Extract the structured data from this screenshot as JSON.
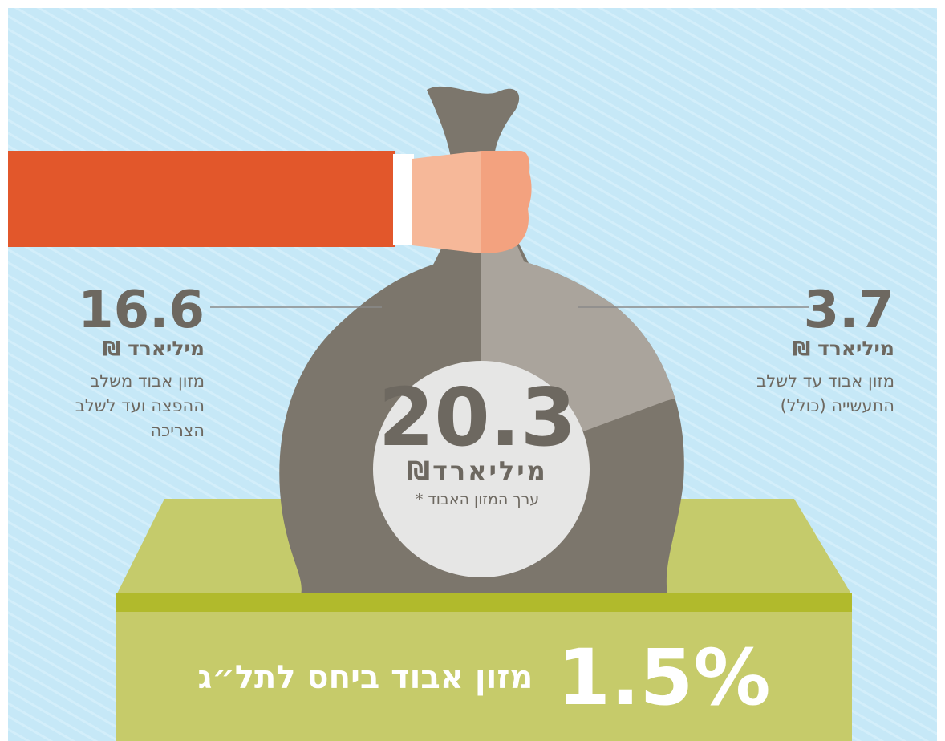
{
  "left": {
    "value": "16.6",
    "unit": "מיליארד ₪",
    "lines": [
      "מזון אבוד משלב",
      "ההפצה ועד לשלב",
      "הצריכה"
    ]
  },
  "right": {
    "value": "3.7",
    "unit": "מיליארד ₪",
    "lines": [
      "מזון אבוד עד לשלב",
      "התעשייה (כולל)"
    ]
  },
  "center": {
    "value": "20.3",
    "unit": "מיליארד₪",
    "note": "ערך המזון האבוד *"
  },
  "bottom": {
    "value": "1.5%",
    "label": "מזון אבוד ביחס לתל״ג"
  }
}
